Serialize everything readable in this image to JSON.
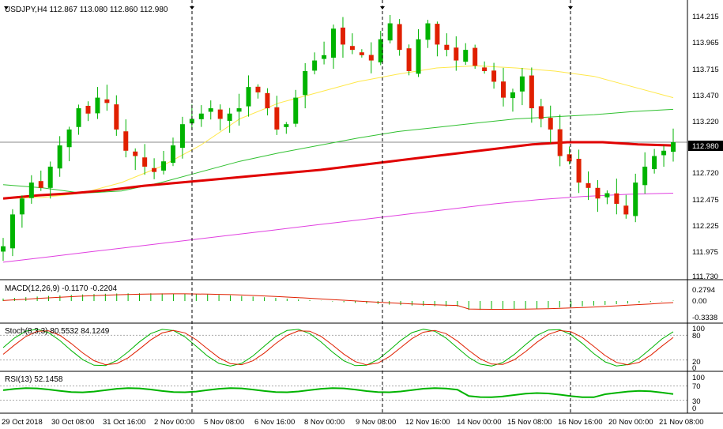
{
  "main": {
    "header": "USDJPY,H4  112.867 113.080 112.860 112.980",
    "current_price": "112.980",
    "y_ticks": [
      "114.215",
      "113.965",
      "113.715",
      "113.470",
      "113.220",
      "112.980",
      "112.720",
      "112.475",
      "112.225",
      "111.975",
      "111.730"
    ],
    "ylim": [
      111.73,
      114.29
    ],
    "colors": {
      "bull": "#00b300",
      "bear": "#e02000",
      "ma_red": "#e00000",
      "ma_yellow": "#ffe84a",
      "ma_green": "#30c030",
      "ma_magenta": "#e040e0"
    }
  },
  "macd": {
    "header": "MACD(12,26,9) -0.1170 -0.2204",
    "ticks": [
      "0.2794",
      "0.00",
      "-0.3338"
    ]
  },
  "stoch": {
    "header": "Stoch(8,3,3) 80.5532 84.1249",
    "ticks": [
      "100",
      "80",
      "20",
      "0"
    ]
  },
  "rsi": {
    "header": "RSI(13) 52.1458",
    "ticks": [
      "100",
      "70",
      "30",
      "0"
    ]
  },
  "time_axis": {
    "labels": [
      "29 Oct 2018",
      "30 Oct 08:00",
      "31 Oct 16:00",
      "2 Nov 00:00",
      "5 Nov 08:00",
      "6 Nov 16:00",
      "8 Nov 00:00",
      "9 Nov 08:00",
      "12 Nov 16:00",
      "14 Nov 00:00",
      "15 Nov 08:00",
      "16 Nov 16:00",
      "20 Nov 00:00",
      "21 Nov 08:00"
    ]
  },
  "chart_data": {
    "type": "candlestick",
    "symbol": "USDJPY",
    "timeframe": "H4",
    "close_path": [
      112.0,
      112.3,
      112.45,
      112.6,
      112.55,
      112.75,
      112.95,
      113.1,
      113.3,
      113.25,
      113.4,
      113.35,
      113.1,
      112.9,
      112.85,
      112.75,
      112.7,
      112.8,
      112.95,
      113.15,
      113.2,
      113.25,
      113.3,
      113.2,
      113.25,
      113.3,
      113.5,
      113.45,
      113.3,
      113.1,
      113.15,
      113.4,
      113.65,
      113.75,
      113.8,
      114.05,
      113.9,
      113.85,
      113.8,
      113.75,
      113.95,
      114.1,
      113.85,
      113.65,
      113.95,
      114.1,
      113.9,
      113.85,
      113.75,
      113.85,
      113.7,
      113.65,
      113.55,
      113.4,
      113.45,
      113.6,
      113.3,
      113.2,
      113.1,
      112.85,
      112.8,
      112.6,
      112.55,
      112.45,
      112.5,
      112.4,
      112.3,
      112.6,
      112.75,
      112.85,
      112.9,
      112.98
    ],
    "ma_red": [
      112.45,
      112.48,
      112.5,
      112.53,
      112.57,
      112.6,
      112.63,
      112.66,
      112.69,
      112.72,
      112.76,
      112.8,
      112.84,
      112.88,
      112.92,
      112.96,
      112.98,
      112.98,
      112.96,
      112.95
    ],
    "ma_yellow": [
      112.45,
      112.46,
      112.5,
      112.6,
      112.75,
      112.95,
      113.2,
      113.35,
      113.45,
      113.55,
      113.62,
      113.68,
      113.7,
      113.68,
      113.65,
      113.6,
      113.5,
      113.4
    ],
    "ma_green": [
      112.58,
      112.55,
      112.5,
      112.52,
      112.6,
      112.7,
      112.8,
      112.88,
      112.95,
      113.02,
      113.08,
      113.12,
      113.16,
      113.2,
      113.22,
      113.24,
      113.27,
      113.29
    ],
    "ma_magenta": [
      111.85,
      111.9,
      111.95,
      112.0,
      112.05,
      112.1,
      112.15,
      112.2,
      112.25,
      112.3,
      112.35,
      112.4,
      112.44,
      112.47,
      112.49,
      112.5
    ]
  }
}
